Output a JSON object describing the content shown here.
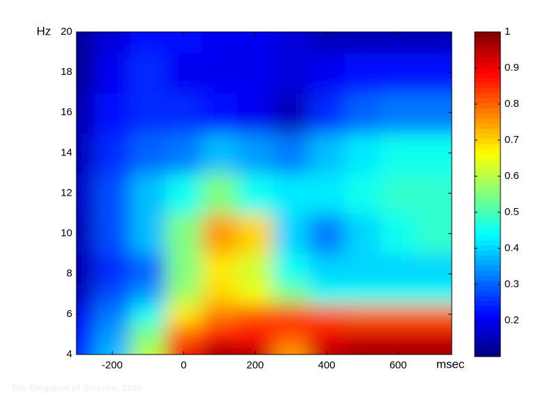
{
  "chart_data": {
    "type": "contour",
    "x_label": "msec",
    "y_label": "Hz",
    "watermark": "The Elegance of Science, 2009",
    "x": [
      -300,
      -200,
      -100,
      0,
      100,
      200,
      300,
      400,
      500,
      600,
      700
    ],
    "y": [
      4,
      5,
      6,
      7,
      8,
      10,
      12,
      14,
      16,
      18,
      20
    ],
    "z": [
      [
        0.25,
        0.38,
        0.6,
        0.9,
        0.98,
        0.95,
        0.75,
        0.95,
        0.98,
        0.98,
        0.98
      ],
      [
        0.22,
        0.35,
        0.55,
        0.8,
        0.88,
        0.88,
        0.82,
        0.9,
        0.92,
        0.92,
        0.92
      ],
      [
        0.2,
        0.32,
        0.45,
        0.68,
        0.78,
        0.82,
        0.85,
        0.82,
        0.8,
        0.8,
        0.8
      ],
      [
        0.15,
        0.28,
        0.35,
        0.58,
        0.7,
        0.65,
        0.55,
        0.45,
        0.45,
        0.45,
        0.45
      ],
      [
        0.14,
        0.25,
        0.3,
        0.55,
        0.68,
        0.62,
        0.45,
        0.4,
        0.4,
        0.4,
        0.4
      ],
      [
        0.15,
        0.28,
        0.38,
        0.55,
        0.75,
        0.7,
        0.4,
        0.32,
        0.4,
        0.45,
        0.48
      ],
      [
        0.16,
        0.28,
        0.38,
        0.45,
        0.55,
        0.45,
        0.42,
        0.42,
        0.45,
        0.48,
        0.48
      ],
      [
        0.15,
        0.25,
        0.3,
        0.32,
        0.38,
        0.35,
        0.32,
        0.38,
        0.42,
        0.45,
        0.45
      ],
      [
        0.14,
        0.22,
        0.25,
        0.25,
        0.22,
        0.2,
        0.15,
        0.25,
        0.3,
        0.32,
        0.32
      ],
      [
        0.12,
        0.2,
        0.25,
        0.2,
        0.2,
        0.2,
        0.18,
        0.2,
        0.22,
        0.22,
        0.22
      ],
      [
        0.12,
        0.18,
        0.22,
        0.22,
        0.2,
        0.2,
        0.18,
        0.15,
        0.15,
        0.15,
        0.15
      ]
    ],
    "xlim": [
      -300,
      750
    ],
    "xticks": [
      -200,
      0,
      200,
      400,
      600
    ],
    "ylim": [
      4,
      20
    ],
    "yticks": [
      4,
      6,
      8,
      10,
      12,
      14,
      16,
      18,
      20
    ],
    "clim": [
      0.1,
      1
    ],
    "cticks": [
      0.2,
      0.3,
      0.4,
      0.5,
      0.6,
      0.7,
      0.8,
      0.9,
      1
    ],
    "colormap": "jet"
  }
}
